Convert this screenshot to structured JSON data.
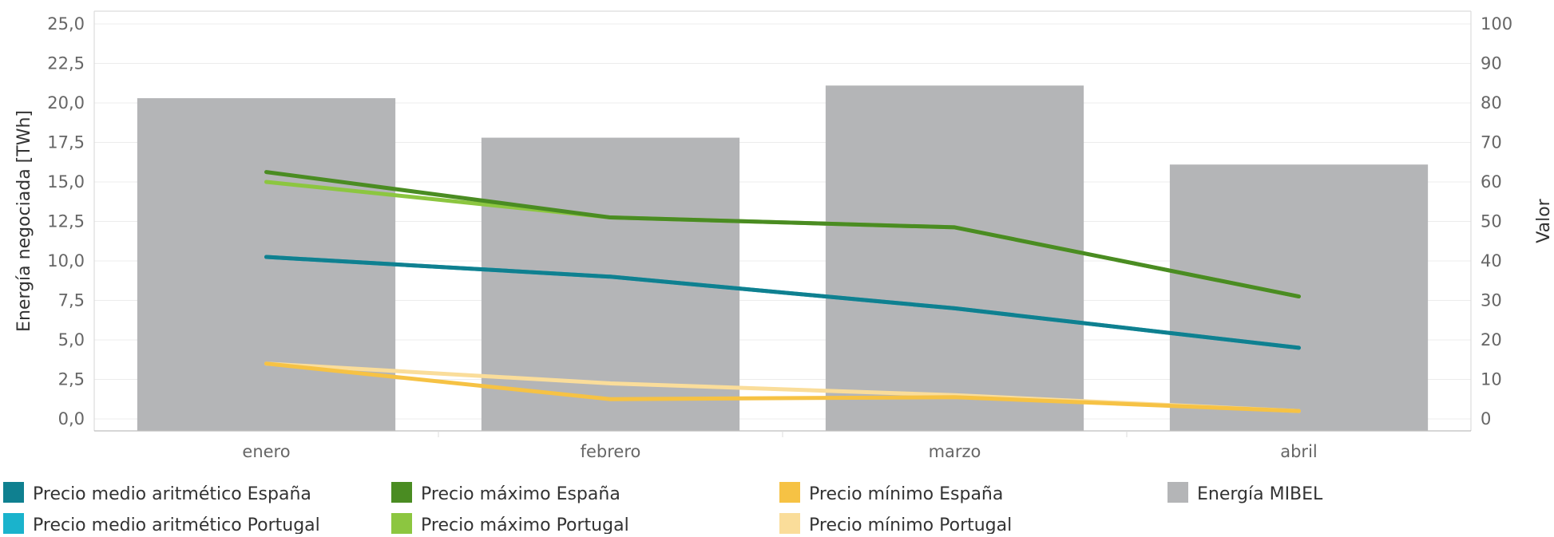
{
  "chart_data": {
    "type": "bar",
    "categories": [
      "enero",
      "febrero",
      "marzo",
      "abril"
    ],
    "bar_series": {
      "name": "Energía MIBEL",
      "axis": "left",
      "values": [
        20.3,
        17.8,
        21.1,
        16.1
      ],
      "color": "#b4b5b7"
    },
    "line_series": [
      {
        "name": "Precio medio aritmético España",
        "axis": "right",
        "values": [
          41,
          36,
          28,
          18
        ],
        "color": "#0f8090"
      },
      {
        "name": "Precio medio aritmético Portugal",
        "axis": "right",
        "values": [
          41,
          36,
          28,
          18
        ],
        "color": "#1ab3cc"
      },
      {
        "name": "Precio máximo España",
        "axis": "right",
        "values": [
          62.5,
          51,
          48.5,
          31
        ],
        "color": "#4a8c22"
      },
      {
        "name": "Precio máximo Portugal",
        "axis": "right",
        "values": [
          60,
          51,
          48.5,
          31
        ],
        "color": "#8cc640"
      },
      {
        "name": "Precio mínimo España",
        "axis": "right",
        "values": [
          14,
          5,
          5.5,
          2
        ],
        "color": "#f6c244"
      },
      {
        "name": "Precio mínimo Portugal",
        "axis": "right",
        "values": [
          14,
          9,
          6,
          2
        ],
        "color": "#fadd9a"
      }
    ],
    "y_left": {
      "label": "Energía negociada [TWh]",
      "ticks": [
        "0,0",
        "2,5",
        "5,0",
        "7,5",
        "10,0",
        "12,5",
        "15,0",
        "17,5",
        "20,0",
        "22,5",
        "25,0"
      ],
      "ylim": [
        0,
        25
      ]
    },
    "y_right": {
      "label": "Valor",
      "ticks": [
        "0",
        "10",
        "20",
        "30",
        "40",
        "50",
        "60",
        "70",
        "80",
        "90",
        "100"
      ],
      "ylim": [
        0,
        100
      ]
    },
    "grid": true,
    "legend": {
      "placement": "bottom",
      "items": [
        "Precio medio aritmético España",
        "Precio máximo España",
        "Precio mínimo España",
        "Energía MIBEL",
        "Precio medio aritmético Portugal",
        "Precio máximo Portugal",
        "Precio mínimo Portugal"
      ]
    }
  }
}
